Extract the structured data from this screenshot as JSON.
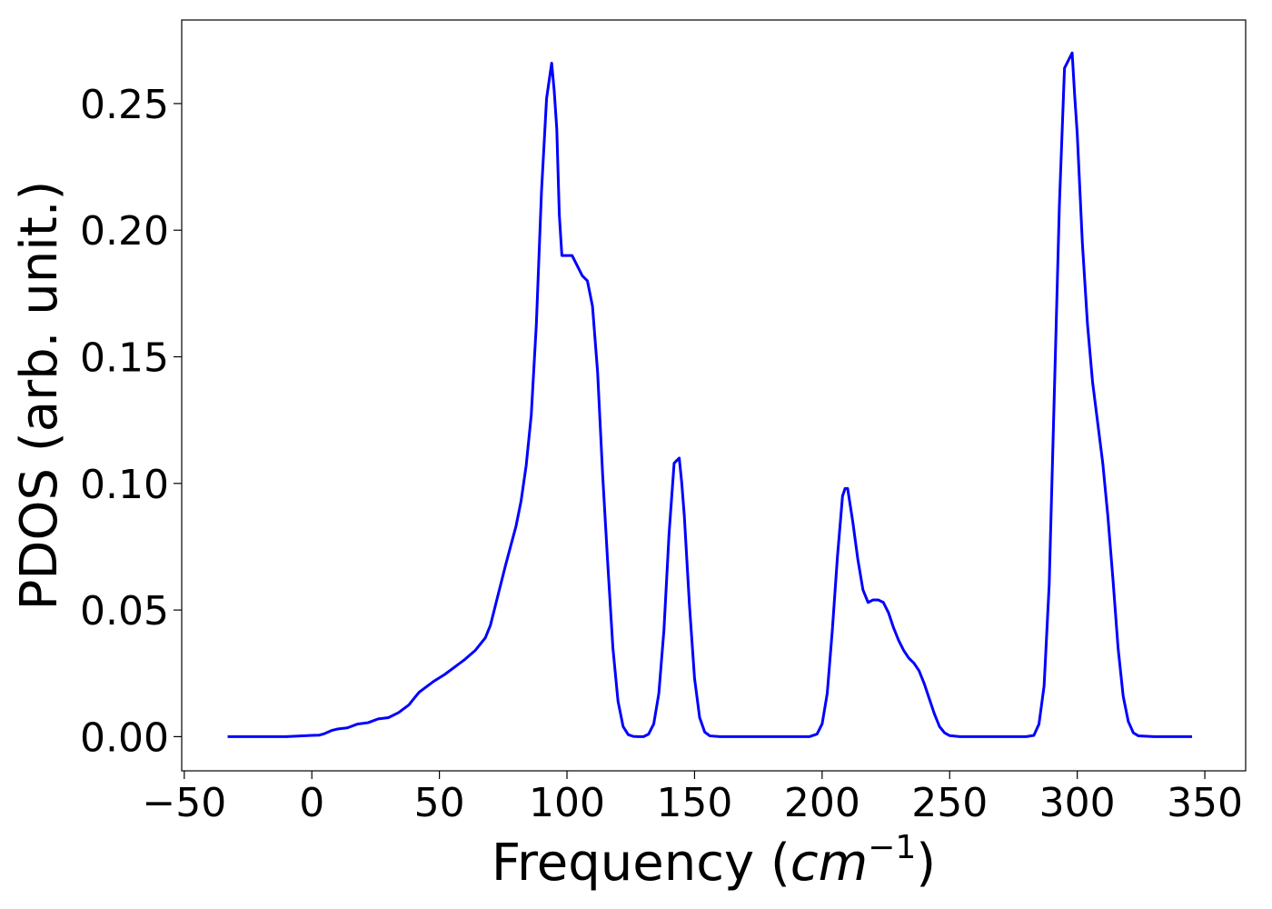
{
  "chart_data": {
    "type": "line",
    "title": "",
    "xlabel": "Frequency (",
    "xlabel_math": "cm",
    "xlabel_sup": "−1",
    "xlabel_close": ")",
    "ylabel": "PDOS (arb. unit.)",
    "xlim": [
      -51,
      366
    ],
    "ylim": [
      -0.0135,
      0.283
    ],
    "xticks": [
      -50,
      0,
      50,
      100,
      150,
      200,
      250,
      300,
      350
    ],
    "xtick_labels": [
      "−50",
      "0",
      "50",
      "100",
      "150",
      "200",
      "250",
      "300",
      "350"
    ],
    "yticks": [
      0.0,
      0.05,
      0.1,
      0.15,
      0.2,
      0.25
    ],
    "ytick_labels": [
      "0.00",
      "0.05",
      "0.10",
      "0.15",
      "0.20",
      "0.25"
    ],
    "grid": false,
    "line_color": "#0000ff",
    "series": [
      {
        "x": [
          -33,
          -20,
          -10,
          0,
          3,
          5,
          8,
          10,
          14,
          18,
          22,
          26,
          30,
          34,
          38,
          40,
          42,
          44,
          48,
          52,
          56,
          60,
          64,
          66,
          68,
          70,
          72,
          74,
          76,
          78,
          80,
          82,
          84,
          86,
          88,
          90,
          92,
          93,
          94,
          95,
          96,
          97,
          98,
          100,
          102,
          104,
          106,
          108,
          110,
          112,
          114,
          116,
          118,
          120,
          122,
          124,
          126,
          128,
          130,
          132,
          134,
          136,
          138,
          140,
          142,
          143,
          144,
          145,
          146,
          148,
          150,
          152,
          154,
          156,
          160,
          170,
          180,
          190,
          195,
          198,
          200,
          202,
          204,
          206,
          208,
          209,
          210,
          212,
          214,
          216,
          218,
          220,
          222,
          224,
          226,
          228,
          230,
          232,
          234,
          236,
          238,
          240,
          242,
          244,
          246,
          248,
          250,
          254,
          260,
          270,
          280,
          283,
          285,
          287,
          289,
          291,
          293,
          295,
          297,
          298,
          299,
          300,
          302,
          304,
          306,
          308,
          310,
          312,
          314,
          316,
          318,
          320,
          322,
          324,
          330,
          340,
          345
        ],
        "y": [
          0.0,
          0.0,
          0.0,
          0.0005,
          0.0006,
          0.0012,
          0.0025,
          0.003,
          0.0035,
          0.005,
          0.0055,
          0.007,
          0.0075,
          0.0095,
          0.0125,
          0.015,
          0.0175,
          0.019,
          0.022,
          0.0245,
          0.0275,
          0.0305,
          0.034,
          0.0365,
          0.039,
          0.044,
          0.052,
          0.06,
          0.068,
          0.0755,
          0.083,
          0.093,
          0.107,
          0.127,
          0.163,
          0.215,
          0.252,
          0.259,
          0.266,
          0.255,
          0.24,
          0.206,
          0.19,
          0.19,
          0.19,
          0.186,
          0.182,
          0.18,
          0.17,
          0.144,
          0.103,
          0.068,
          0.035,
          0.014,
          0.004,
          0.0008,
          0.0001,
          0.0,
          0.0,
          0.001,
          0.005,
          0.017,
          0.042,
          0.08,
          0.108,
          0.109,
          0.11,
          0.1,
          0.087,
          0.052,
          0.023,
          0.0075,
          0.0018,
          0.0003,
          0.0,
          0.0,
          0.0,
          0.0,
          0.0,
          0.001,
          0.005,
          0.017,
          0.042,
          0.071,
          0.095,
          0.098,
          0.098,
          0.085,
          0.07,
          0.058,
          0.053,
          0.054,
          0.054,
          0.053,
          0.049,
          0.043,
          0.038,
          0.034,
          0.031,
          0.029,
          0.026,
          0.021,
          0.015,
          0.009,
          0.004,
          0.0015,
          0.0004,
          0.0,
          0.0,
          0.0,
          0.0,
          0.0005,
          0.005,
          0.02,
          0.06,
          0.135,
          0.21,
          0.264,
          0.268,
          0.27,
          0.253,
          0.238,
          0.195,
          0.163,
          0.14,
          0.124,
          0.108,
          0.087,
          0.062,
          0.035,
          0.016,
          0.006,
          0.0015,
          0.0003,
          0.0,
          0.0,
          0.0
        ]
      }
    ]
  }
}
